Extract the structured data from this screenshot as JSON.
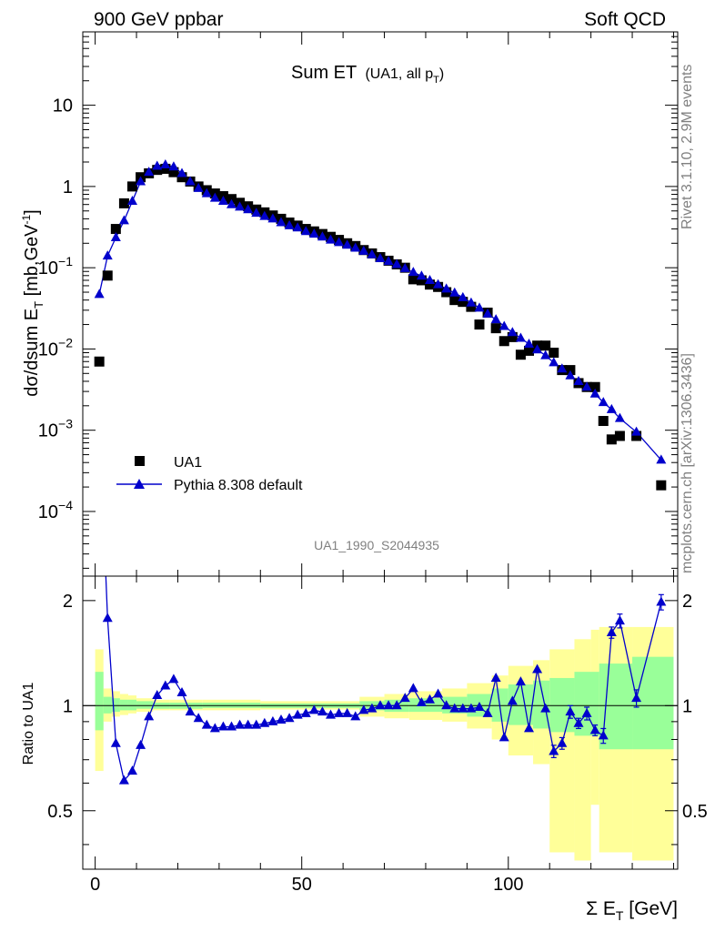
{
  "header": {
    "left": "900 GeV ppbar",
    "right": "Soft QCD"
  },
  "side_labels": {
    "top": "Rivet 3.1.10,  2.9M events",
    "bottom": "mcplots.cern.ch [arXiv:1306.3436]"
  },
  "chart_data": {
    "type": "scatter",
    "title": "Sum ET",
    "title_suffix": "(UA1, all p",
    "title_suffix_sub": "T",
    "title_suffix_end": ")",
    "analysis_id": "UA1_1990_S2044935",
    "ylabel_main": "dσ/dsum E",
    "ylabel_main_sub": "T",
    "ylabel_main_unit": " [mb,GeV",
    "ylabel_main_sup": "-1",
    "ylabel_main_end": "]",
    "ylabel_ratio": "Ratio to UA1",
    "xlabel": "Σ E",
    "xlabel_sub": "T",
    "xlabel_unit": " [GeV]",
    "xlim": [
      -3,
      141
    ],
    "ylim_main": [
      1.6e-05,
      80
    ],
    "ylog_main": true,
    "ylim_ratio": [
      0.34,
      2.35
    ],
    "ylog_ratio": true,
    "x_ticks": [
      {
        "v": 0,
        "label": "0"
      },
      {
        "v": 50,
        "label": "50"
      },
      {
        "v": 100,
        "label": "100"
      }
    ],
    "y_main_ticks": [
      {
        "v": 0.0001,
        "base": "10",
        "exp": "−4"
      },
      {
        "v": 0.001,
        "base": "10",
        "exp": "−3"
      },
      {
        "v": 0.01,
        "base": "10",
        "exp": "−2"
      },
      {
        "v": 0.1,
        "base": "10",
        "exp": "−1"
      },
      {
        "v": 1,
        "base": "1",
        "exp": ""
      },
      {
        "v": 10,
        "base": "10",
        "exp": ""
      }
    ],
    "y_ratio_ticks": [
      {
        "v": 0.5,
        "label": "0.5"
      },
      {
        "v": 1,
        "label": "1"
      },
      {
        "v": 2,
        "label": "2"
      }
    ],
    "legend_position": "lower-left",
    "series": [
      {
        "name": "UA1",
        "marker": "square",
        "color": "#000000",
        "x": [
          1,
          3,
          5,
          7,
          9,
          11,
          13,
          15,
          17,
          19,
          21,
          23,
          25,
          27,
          29,
          31,
          33,
          35,
          37,
          39,
          41,
          43,
          45,
          47,
          49,
          51,
          53,
          55,
          57,
          59,
          61,
          63,
          65,
          67,
          69,
          71,
          73,
          75,
          77,
          79,
          81,
          83,
          85,
          87,
          89,
          91,
          93,
          95,
          97,
          99,
          101,
          103,
          105,
          107,
          109,
          111,
          113,
          115,
          117,
          119,
          121,
          123,
          125,
          127,
          131,
          137
        ],
        "y": [
          0.007,
          0.08,
          0.3,
          0.62,
          1.0,
          1.3,
          1.45,
          1.6,
          1.65,
          1.5,
          1.3,
          1.15,
          1.0,
          0.9,
          0.82,
          0.76,
          0.7,
          0.63,
          0.57,
          0.52,
          0.48,
          0.44,
          0.4,
          0.36,
          0.33,
          0.3,
          0.28,
          0.26,
          0.24,
          0.22,
          0.2,
          0.185,
          0.165,
          0.15,
          0.135,
          0.122,
          0.11,
          0.1,
          0.072,
          0.07,
          0.062,
          0.058,
          0.05,
          0.04,
          0.038,
          0.033,
          0.02,
          0.028,
          0.018,
          0.0125,
          0.014,
          0.0085,
          0.0095,
          0.011,
          0.011,
          0.009,
          0.0055,
          0.0055,
          0.0038,
          0.0034,
          0.0034,
          0.0013,
          0.00077,
          0.00085,
          0.00085,
          0.00021
        ]
      },
      {
        "name": "Pythia 8.308 default",
        "marker": "triangle",
        "color": "#0000cc",
        "x": [
          1,
          3,
          5,
          7,
          9,
          11,
          13,
          15,
          17,
          19,
          21,
          23,
          25,
          27,
          29,
          31,
          33,
          35,
          37,
          39,
          41,
          43,
          45,
          47,
          49,
          51,
          53,
          55,
          57,
          59,
          61,
          63,
          65,
          67,
          69,
          71,
          73,
          75,
          77,
          79,
          81,
          83,
          85,
          87,
          89,
          91,
          93,
          95,
          97,
          99,
          101,
          103,
          105,
          107,
          109,
          111,
          113,
          115,
          117,
          119,
          121,
          123,
          125,
          127,
          131,
          137
        ],
        "y": [
          0.047,
          0.14,
          0.235,
          0.38,
          0.66,
          1.15,
          1.5,
          1.78,
          1.85,
          1.75,
          1.45,
          1.15,
          0.95,
          0.82,
          0.72,
          0.66,
          0.6,
          0.56,
          0.52,
          0.47,
          0.43,
          0.4,
          0.36,
          0.33,
          0.31,
          0.28,
          0.26,
          0.24,
          0.22,
          0.205,
          0.19,
          0.175,
          0.16,
          0.145,
          0.13,
          0.12,
          0.11,
          0.098,
          0.088,
          0.079,
          0.07,
          0.062,
          0.055,
          0.049,
          0.043,
          0.037,
          0.032,
          0.027,
          0.023,
          0.019,
          0.016,
          0.0136,
          0.0115,
          0.0098,
          0.0083,
          0.0068,
          0.0057,
          0.0047,
          0.004,
          0.0034,
          0.0028,
          0.0022,
          0.0018,
          0.0014,
          0.00095,
          0.00043
        ]
      }
    ],
    "ratio": {
      "x": [
        1,
        3,
        5,
        7,
        9,
        11,
        13,
        15,
        17,
        19,
        21,
        23,
        25,
        27,
        29,
        31,
        33,
        35,
        37,
        39,
        41,
        43,
        45,
        47,
        49,
        51,
        53,
        55,
        57,
        59,
        61,
        63,
        65,
        67,
        69,
        71,
        73,
        75,
        77,
        79,
        81,
        83,
        85,
        87,
        89,
        91,
        93,
        95,
        97,
        99,
        101,
        103,
        105,
        107,
        109,
        111,
        113,
        115,
        117,
        119,
        121,
        123,
        125,
        127,
        131,
        137
      ],
      "y": [
        6.7,
        1.78,
        0.78,
        0.61,
        0.65,
        0.77,
        0.93,
        1.07,
        1.14,
        1.19,
        1.09,
        0.96,
        0.92,
        0.88,
        0.86,
        0.87,
        0.87,
        0.88,
        0.88,
        0.88,
        0.89,
        0.9,
        0.91,
        0.92,
        0.94,
        0.95,
        0.97,
        0.96,
        0.94,
        0.95,
        0.95,
        0.93,
        0.97,
        0.98,
        1.0,
        1.0,
        1.0,
        1.05,
        1.12,
        1.02,
        1.04,
        1.08,
        1.0,
        0.98,
        0.98,
        0.98,
        0.99,
        0.95,
        1.2,
        0.81,
        1.03,
        1.17,
        0.86,
        1.27,
        0.98,
        0.74,
        0.78,
        0.96,
        0.89,
        0.95,
        0.85,
        0.82,
        1.62,
        1.75,
        1.05,
        1.98
      ],
      "err": [
        0,
        0,
        0,
        0,
        0,
        0,
        0,
        0,
        0,
        0,
        0,
        0,
        0,
        0,
        0,
        0,
        0,
        0,
        0,
        0,
        0,
        0,
        0,
        0,
        0,
        0,
        0,
        0,
        0,
        0,
        0,
        0,
        0,
        0,
        0,
        0,
        0,
        0,
        0,
        0,
        0,
        0,
        0,
        0,
        0,
        0,
        0,
        0,
        0,
        0,
        0,
        0,
        0,
        0,
        0,
        0.03,
        0.03,
        0.04,
        0.03,
        0.04,
        0.03,
        0.04,
        0.06,
        0.08,
        0.06,
        0.1
      ],
      "band_green": [
        [
          0,
          2,
          0.85,
          1.25
        ],
        [
          2,
          4,
          0.95,
          1.06
        ],
        [
          4,
          6,
          0.96,
          1.05
        ],
        [
          6,
          8,
          0.97,
          1.04
        ],
        [
          8,
          10,
          0.97,
          1.04
        ],
        [
          10,
          14,
          0.98,
          1.03
        ],
        [
          14,
          18,
          0.98,
          1.02
        ],
        [
          18,
          26,
          0.98,
          1.02
        ],
        [
          26,
          40,
          0.985,
          1.02
        ],
        [
          40,
          64,
          0.985,
          1.015
        ],
        [
          64,
          70,
          0.97,
          1.03
        ],
        [
          70,
          76,
          0.96,
          1.04
        ],
        [
          76,
          84,
          0.96,
          1.05
        ],
        [
          84,
          90,
          0.95,
          1.06
        ],
        [
          90,
          96,
          0.93,
          1.08
        ],
        [
          96,
          100,
          0.9,
          1.12
        ],
        [
          100,
          106,
          0.88,
          1.15
        ],
        [
          106,
          110,
          0.86,
          1.18
        ],
        [
          110,
          116,
          0.84,
          1.2
        ],
        [
          116,
          122,
          0.82,
          1.25
        ],
        [
          122,
          130,
          0.75,
          1.32
        ],
        [
          130,
          140,
          0.75,
          1.38
        ]
      ],
      "band_yellow": [
        [
          0,
          2,
          0.65,
          1.45
        ],
        [
          2,
          4,
          0.9,
          1.12
        ],
        [
          4,
          6,
          0.93,
          1.1
        ],
        [
          6,
          8,
          0.94,
          1.08
        ],
        [
          8,
          10,
          0.95,
          1.07
        ],
        [
          10,
          14,
          0.96,
          1.05
        ],
        [
          14,
          18,
          0.97,
          1.04
        ],
        [
          18,
          26,
          0.97,
          1.04
        ],
        [
          26,
          40,
          0.97,
          1.04
        ],
        [
          40,
          64,
          0.975,
          1.03
        ],
        [
          64,
          70,
          0.93,
          1.06
        ],
        [
          70,
          76,
          0.92,
          1.08
        ],
        [
          76,
          84,
          0.91,
          1.1
        ],
        [
          84,
          90,
          0.9,
          1.12
        ],
        [
          90,
          96,
          0.86,
          1.16
        ],
        [
          96,
          100,
          0.8,
          1.22
        ],
        [
          100,
          106,
          0.72,
          1.3
        ],
        [
          106,
          110,
          0.68,
          1.35
        ],
        [
          110,
          116,
          0.38,
          1.45
        ],
        [
          116,
          120,
          0.36,
          1.55
        ],
        [
          120,
          122,
          0.52,
          1.65
        ],
        [
          122,
          130,
          0.38,
          1.68
        ],
        [
          130,
          140,
          0.36,
          1.68
        ]
      ]
    }
  }
}
